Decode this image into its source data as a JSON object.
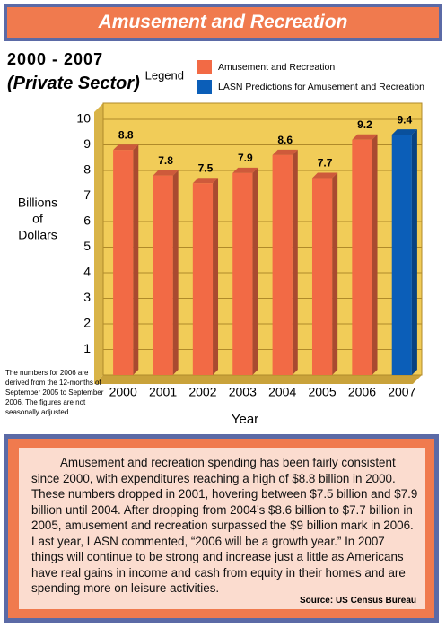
{
  "chart_data": {
    "type": "bar",
    "header": "Amusement and Recreation",
    "title": "2000 - 2007",
    "subtitle": "(Private Sector)",
    "legend_title": "Legend",
    "ylabel": [
      "Billions",
      "of",
      "Dollars"
    ],
    "xlabel": "Year",
    "categories": [
      "2000",
      "2001",
      "2002",
      "2003",
      "2004",
      "2005",
      "2006",
      "2007"
    ],
    "series": [
      {
        "name": "Amusement and Recreation",
        "color": "#f26a45",
        "values": [
          8.8,
          7.8,
          7.5,
          7.9,
          8.6,
          7.7,
          9.2,
          null
        ]
      },
      {
        "name": "LASN Predictions for Amusement and Recreation",
        "color": "#0b5eb8",
        "values": [
          null,
          null,
          null,
          null,
          null,
          null,
          null,
          9.4
        ]
      }
    ],
    "ylim": [
      0,
      10
    ],
    "yticks": [
      1,
      2,
      3,
      4,
      5,
      6,
      7,
      8,
      9,
      10
    ],
    "grid": true,
    "plot_color": "#f1cc58",
    "footnote": "The numbers for 2006 are derived from the 12-months of September 2005 to September 2006. The figures are not seasonally adjusted.",
    "text": "Amusement and recreation spending has been fairly consistent since 2000, with expenditures reaching a high of $8.8 billion in 2000. These numbers dropped in 2001, hovering between $7.5 billion and $7.9 billion until 2004. After dropping from 2004’s $8.6 billion to $7.7 billion in 2005, amusement and recreation surpassed the $9 billion mark in 2006. Last year, LASN commented, “2006 will be a growth year.” In 2007 things will continue to be strong and increase just a little as Americans have real gains in income and cash from equity in their homes and are spending more on leisure activities.",
    "source": "Source: US Census  Bureau"
  }
}
